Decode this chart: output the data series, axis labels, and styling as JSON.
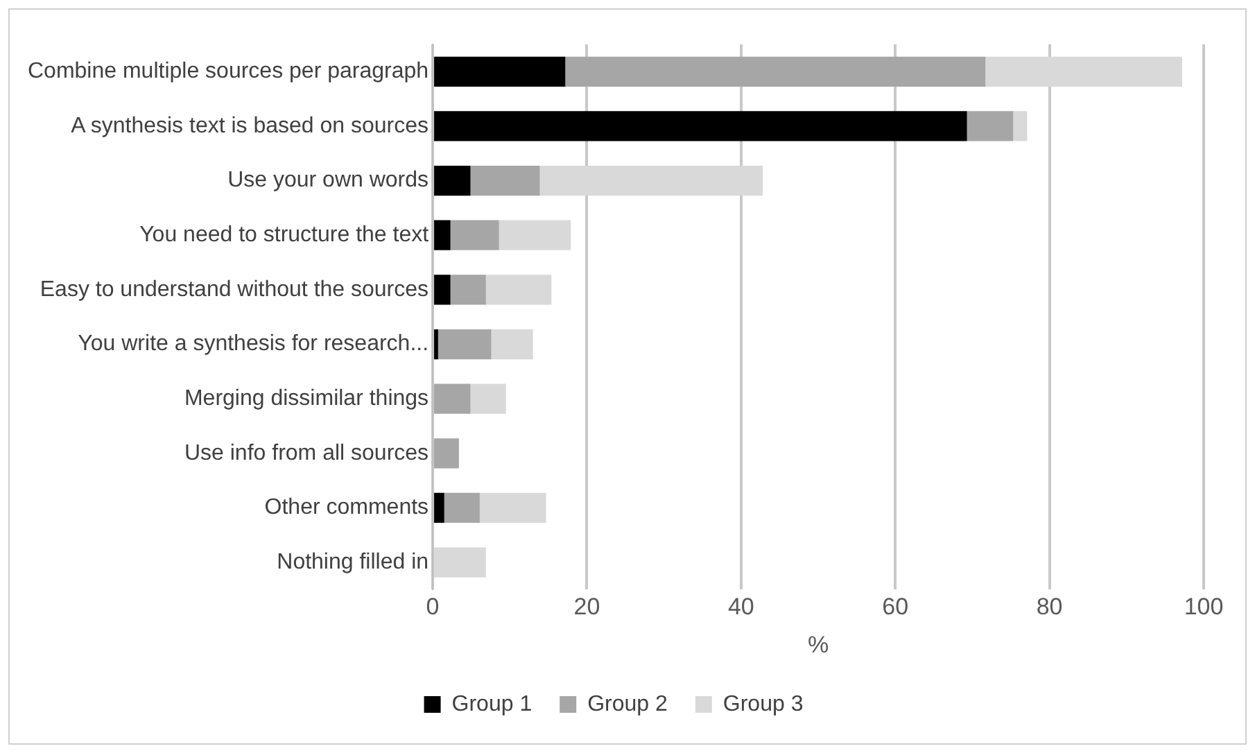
{
  "chart_data": {
    "type": "bar",
    "orientation": "horizontal",
    "stacked": true,
    "xlabel": "%",
    "categories": [
      "Combine multiple sources per paragraph",
      "A synthesis text is based on sources",
      "Use your own words",
      "You need to structure the text",
      "Easy to understand without the sources",
      "You write a synthesis for research...",
      "Merging dissimilar things",
      "Use info from all sources",
      "Other comments",
      "Nothing filled in"
    ],
    "series": [
      {
        "name": "Group 1",
        "color": "#000000",
        "values": [
          17.2,
          69.3,
          4.9,
          2.3,
          2.3,
          0.7,
          0,
          0,
          1.5,
          0
        ]
      },
      {
        "name": "Group 2",
        "color": "#a6a6a6",
        "values": [
          54.5,
          6.0,
          9.0,
          6.3,
          4.6,
          6.9,
          4.9,
          3.4,
          4.6,
          0
        ]
      },
      {
        "name": "Group 3",
        "color": "#d9d9d9",
        "values": [
          25.5,
          1.8,
          28.9,
          9.3,
          8.5,
          5.4,
          4.6,
          0,
          8.6,
          6.9
        ]
      }
    ],
    "xlim": [
      0,
      100
    ],
    "xticks": [
      0,
      20,
      40,
      60,
      80,
      100
    ],
    "grid": "x",
    "legend": "bottom"
  }
}
